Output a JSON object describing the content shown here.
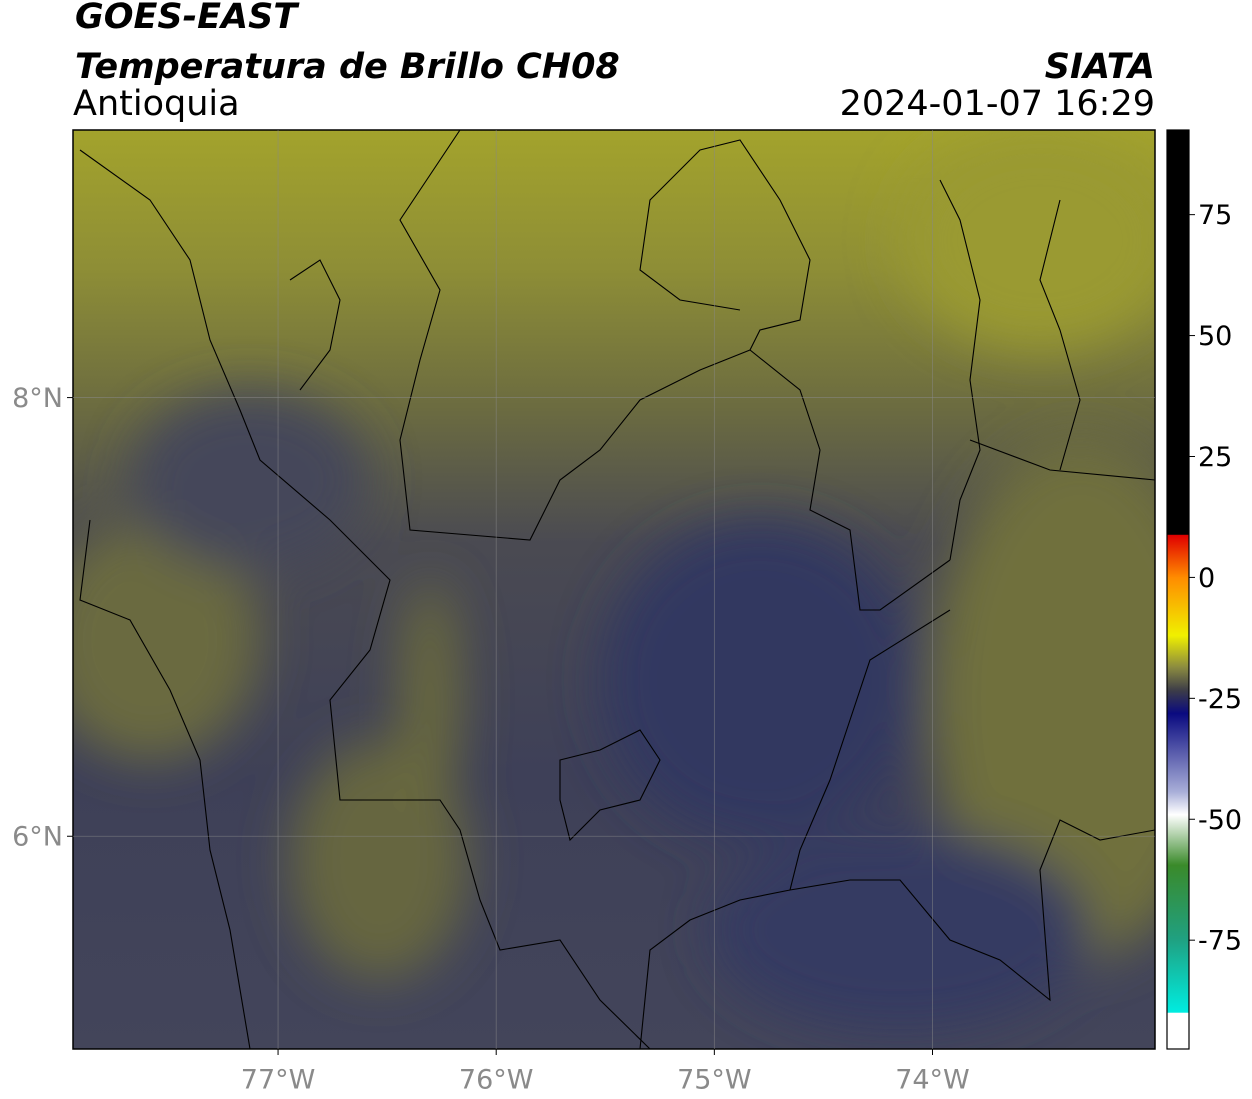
{
  "header": {
    "title": "GOES-EAST",
    "subtitle": "Temperatura de Brillo CH08",
    "region": "Antioquia",
    "source": "SIATA",
    "datetime": "2024-01-07 16:29"
  },
  "map": {
    "xlim": [
      -77.94,
      -72.98
    ],
    "ylim": [
      5.03,
      9.22
    ],
    "xticks": [
      {
        "value": -77,
        "label": "77°W"
      },
      {
        "value": -76,
        "label": "76°W"
      },
      {
        "value": -75,
        "label": "75°W"
      },
      {
        "value": -74,
        "label": "74°W"
      }
    ],
    "yticks": [
      {
        "value": 6,
        "label": "6°N"
      },
      {
        "value": 8,
        "label": "8°N"
      }
    ],
    "grid": true
  },
  "colorbar": {
    "lim": [
      -97.5,
      92.5
    ],
    "ticks": [
      -75,
      -50,
      -25,
      0,
      25,
      50,
      75
    ]
  }
}
